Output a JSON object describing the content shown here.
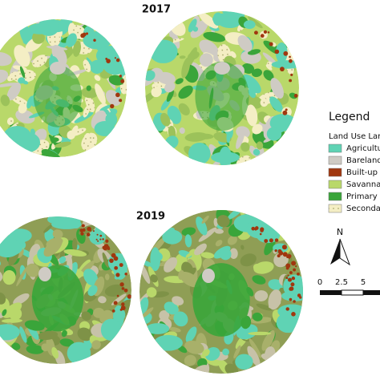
{
  "panels": [
    {
      "title": "2017"
    },
    {
      "title": "2019"
    }
  ],
  "legend": {
    "title": "Legend",
    "subtitle": "Land Use Lanc",
    "items": [
      "Agricultu",
      "Barelandl",
      "Built-up a",
      "Savanna",
      "Primary f",
      "Secondar"
    ]
  },
  "north_arrow": {
    "label": "N"
  },
  "scale_bar": {
    "labels": [
      "0",
      "2.5",
      "5"
    ]
  }
}
